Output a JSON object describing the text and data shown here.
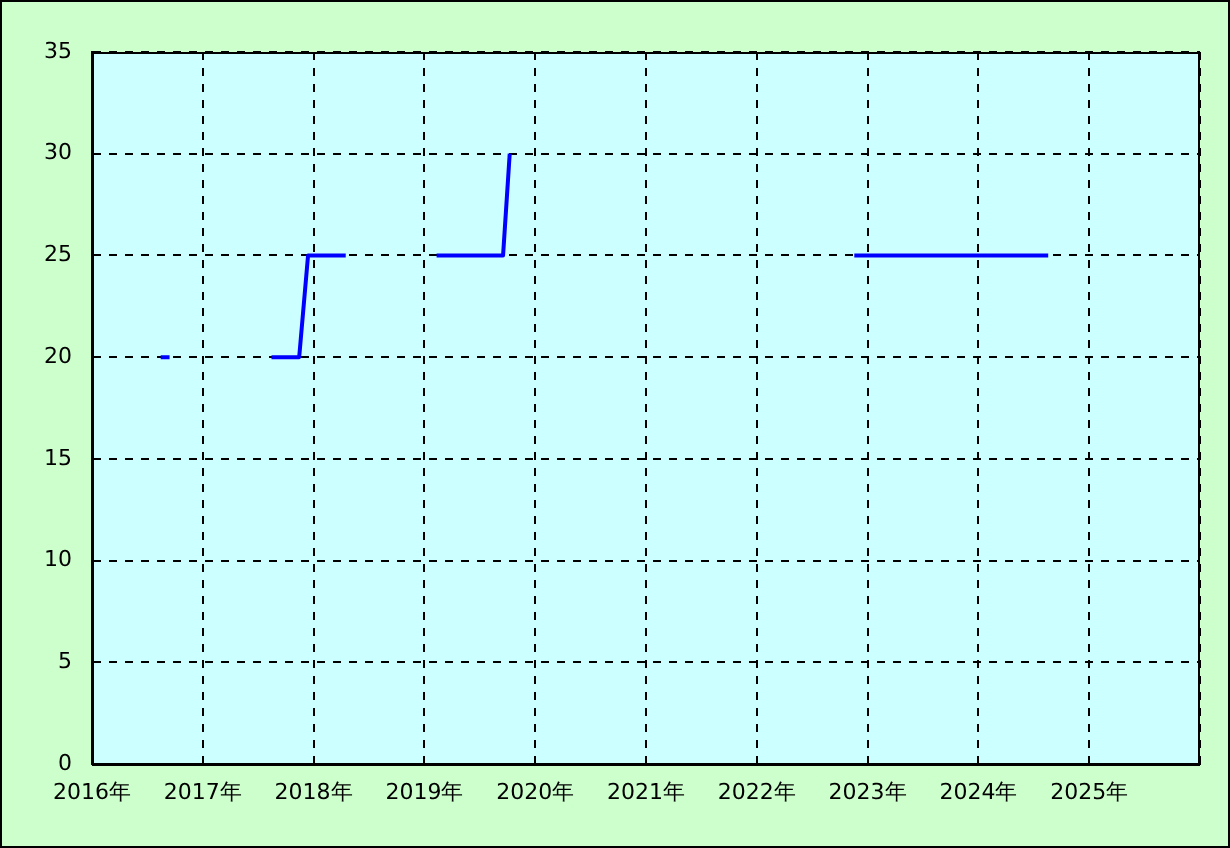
{
  "chart_data": {
    "type": "line",
    "xlim": [
      2016,
      2026
    ],
    "xticks": [
      {
        "value": 2016,
        "label": "2016年"
      },
      {
        "value": 2017,
        "label": "2017年"
      },
      {
        "value": 2018,
        "label": "2018年"
      },
      {
        "value": 2019,
        "label": "2019年"
      },
      {
        "value": 2020,
        "label": "2020年"
      },
      {
        "value": 2021,
        "label": "2021年"
      },
      {
        "value": 2022,
        "label": "2022年"
      },
      {
        "value": 2023,
        "label": "2023年"
      },
      {
        "value": 2024,
        "label": "2024年"
      },
      {
        "value": 2025,
        "label": "2025年"
      },
      {
        "value": 2026,
        "label": null
      }
    ],
    "ylim": [
      0,
      35
    ],
    "yticks": [
      0,
      5,
      10,
      15,
      20,
      25,
      30,
      35
    ],
    "grid": true,
    "marker": "none",
    "line_style": "solid",
    "legend": false,
    "series": [
      {
        "color": "#0000ff",
        "x": [
          2016.62,
          2016.7,
          2017.2,
          2017.62,
          2017.87,
          2017.95,
          2018.29,
          2018.7,
          2019.11,
          2019.71,
          2019.77,
          2021,
          2022.88,
          2024.63
        ],
        "values": [
          20,
          20,
          null,
          20,
          20,
          25,
          25,
          null,
          25,
          25,
          30,
          null,
          25,
          25
        ]
      }
    ]
  }
}
